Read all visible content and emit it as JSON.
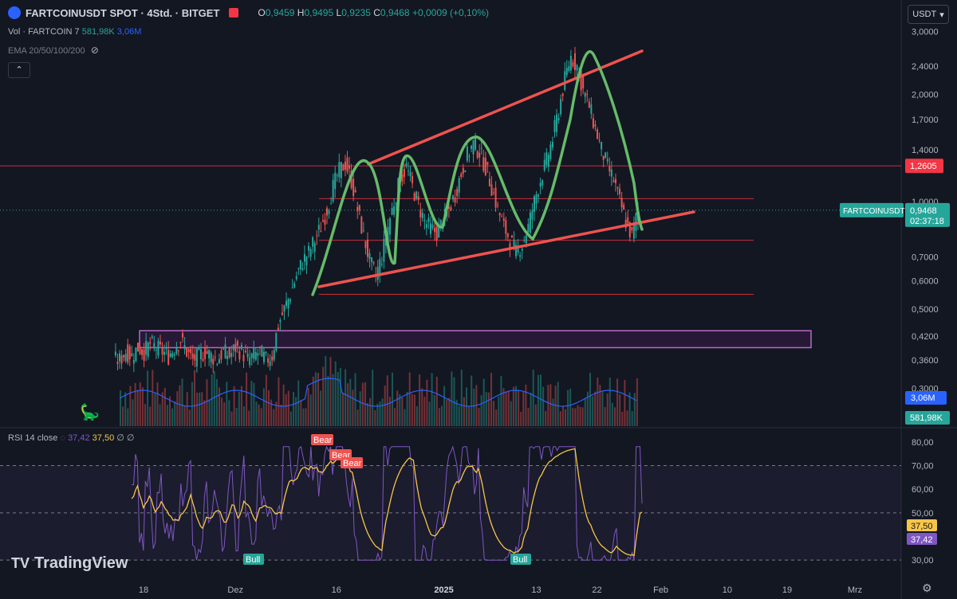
{
  "header": {
    "title": "FARTCOINUSDT SPOT · 4Std. · BITGET",
    "ohlc": {
      "o_label": "O",
      "o": "0,9459",
      "h_label": "H",
      "h": "0,9495",
      "l_label": "L",
      "l": "0,9235",
      "c_label": "C",
      "c": "0,9468",
      "change": "+0,0009 (+0,10%)"
    },
    "volume_label": "Vol · FARTCOIN",
    "volume_period": "7",
    "volume_value": "581,98K",
    "volume_ma": "3,06M",
    "ema_label": "EMA 20/50/100/200",
    "currency": "USDT"
  },
  "rsi": {
    "label": "RSI",
    "params": "14 close",
    "value": "37,42",
    "ma": "37,50",
    "na1": "∅",
    "na2": "∅"
  },
  "brand": "TradingView",
  "chart_data": {
    "type": "candlestick",
    "symbol": "FARTCOINUSDT",
    "price_axis": {
      "scale": "log",
      "range": [
        0.235,
        3.15
      ],
      "ticks": [
        "3,0000",
        "2,4000",
        "2,0000",
        "1,7000",
        "1,4000",
        "1,0000",
        "0,7000",
        "0,6000",
        "0,5000",
        "0,4200",
        "0,3600",
        "0,3000"
      ],
      "tick_values": [
        3.0,
        2.4,
        2.0,
        1.7,
        1.4,
        1.0,
        0.7,
        0.6,
        0.5,
        0.42,
        0.36,
        0.3
      ]
    },
    "time_axis": {
      "labels": [
        "18",
        "Dez",
        "16",
        "2025",
        "13",
        "22",
        "Feb",
        "10",
        "19",
        "Mrz"
      ],
      "label_index": [
        0,
        14.1,
        29.6,
        46.1,
        60.3,
        69.6,
        79.4,
        89.6,
        98.8,
        109.2
      ]
    },
    "price_labels": [
      {
        "text": "1,2605",
        "value": 1.2605,
        "color": "#f23645"
      },
      {
        "text": "0,9468",
        "value": 0.9468,
        "color": "#26a69a",
        "symbol": "FARTCOINUSDT",
        "countdown": "02:37:18"
      },
      {
        "text": "3,06M",
        "color": "#2962ff"
      },
      {
        "text": "581,98K",
        "color": "#26a69a"
      }
    ],
    "close_series": [
      0.36,
      0.38,
      0.37,
      0.39,
      0.38,
      0.4,
      0.39,
      0.38,
      0.37,
      0.39,
      0.41,
      0.38,
      0.36,
      0.37,
      0.38,
      0.37,
      0.36,
      0.38,
      0.37,
      0.39,
      0.38,
      0.36,
      0.37,
      0.38,
      0.36,
      0.37,
      0.45,
      0.5,
      0.55,
      0.62,
      0.68,
      0.72,
      0.78,
      0.85,
      0.95,
      1.1,
      1.22,
      1.28,
      1.15,
      0.95,
      0.8,
      0.68,
      0.62,
      0.7,
      0.85,
      1.0,
      1.15,
      1.25,
      1.1,
      0.98,
      0.88,
      0.84,
      0.82,
      0.88,
      0.95,
      1.05,
      1.2,
      1.35,
      1.45,
      1.38,
      1.25,
      1.1,
      0.95,
      0.85,
      0.78,
      0.72,
      0.76,
      0.85,
      1.0,
      1.15,
      1.3,
      1.5,
      1.8,
      2.2,
      2.55,
      2.4,
      2.05,
      1.85,
      1.6,
      1.4,
      1.25,
      1.15,
      1.0,
      0.88,
      0.8,
      0.9468
    ],
    "annotations": {
      "channel_upper": {
        "from": [
          36,
          1.28
        ],
        "to": [
          85,
          2.6
        ]
      },
      "channel_lower": {
        "from": [
          26,
          0.55
        ],
        "to": [
          90,
          0.85
        ]
      },
      "horizontal_lines": [
        0.55,
        0.78,
        1.02,
        1.2605
      ],
      "support_zone": {
        "top": 0.435,
        "bottom": 0.39,
        "from_index": 0,
        "to_index": 118
      }
    },
    "rsi": {
      "axis_ticks": [
        "80,00",
        "70,00",
        "60,00",
        "50,00",
        "40,00",
        "30,00"
      ],
      "tick_values": [
        80,
        70,
        60,
        50,
        40,
        30
      ],
      "levels": [
        70,
        50,
        30
      ],
      "signals": [
        {
          "text": "Bear",
          "index": 27,
          "value": 75
        },
        {
          "text": "Bear",
          "index": 28.5,
          "value": 71
        },
        {
          "text": "Bear",
          "index": 30,
          "value": 68
        },
        {
          "text": "Bull",
          "index": 16.5,
          "value": 33
        },
        {
          "text": "Bull",
          "index": 57.5,
          "value": 33
        }
      ],
      "value_labels": [
        {
          "text": "37,50",
          "color": "#f7c548"
        },
        {
          "text": "37,42",
          "color": "#7e57c2"
        }
      ]
    }
  }
}
